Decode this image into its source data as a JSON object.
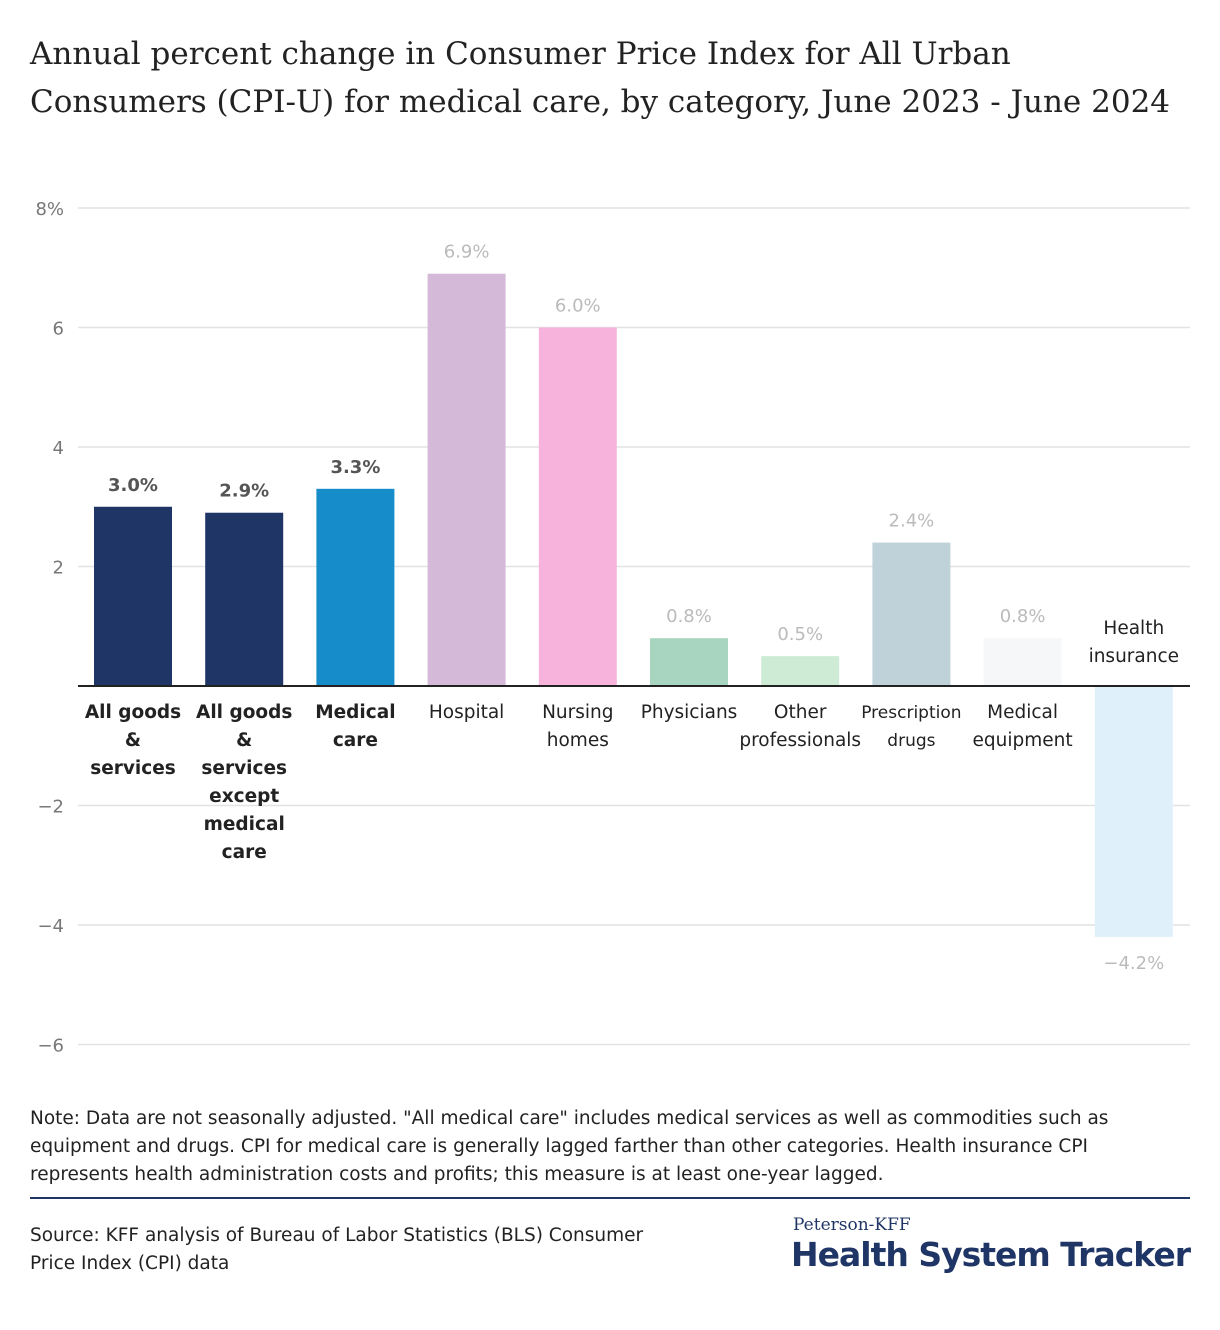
{
  "chart_data": {
    "type": "bar",
    "title": "Annual percent change in Consumer Price Index for All Urban Consumers (CPI-U) for medical care, by category, June 2023 - June 2024",
    "categories": [
      "All goods & services",
      "All goods & services except medical care",
      "Medical care",
      "Hospital",
      "Nursing homes",
      "Physicians",
      "Other professionals",
      "Prescription drugs",
      "Medical equipment",
      "Health insurance"
    ],
    "values": [
      3.0,
      2.9,
      3.3,
      6.9,
      6.0,
      0.8,
      0.5,
      2.4,
      0.8,
      -4.2
    ],
    "data_labels": [
      "3.0%",
      "2.9%",
      "3.3%",
      "6.9%",
      "6.0%",
      "0.8%",
      "0.5%",
      "2.4%",
      "0.8%",
      "−4.2%"
    ],
    "colors": [
      "#1f3566",
      "#1f3566",
      "#178ccb",
      "#d5b9d8",
      "#f7b3dc",
      "#a7d5bf",
      "#cdebd5",
      "#bfd2d9",
      "#f5f7f8",
      "#dff0fb"
    ],
    "bold": [
      true,
      true,
      true,
      false,
      false,
      false,
      false,
      false,
      false,
      false
    ],
    "ylim": [
      -6,
      8
    ],
    "yticks": [
      8,
      6,
      4,
      2,
      0,
      -2,
      -4,
      -6
    ],
    "ytick_labels": [
      "8%",
      "6",
      "4",
      "2",
      "",
      "−2",
      "−4",
      "−6"
    ],
    "grid": true,
    "xlabel": "",
    "ylabel": ""
  },
  "note": "Note: Data are not seasonally adjusted. \"All medical care\" includes medical services as well as commodities such as equipment and drugs. CPI for medical care is generally lagged farther than other categories. Health insurance CPI represents health administration costs and profits; this measure is at least one-year lagged.",
  "source": "Source: KFF analysis of Bureau of Labor Statistics (BLS) Consumer Price Index (CPI) data",
  "logo": {
    "line1": "Peterson-KFF",
    "line2": "Health System Tracker"
  }
}
